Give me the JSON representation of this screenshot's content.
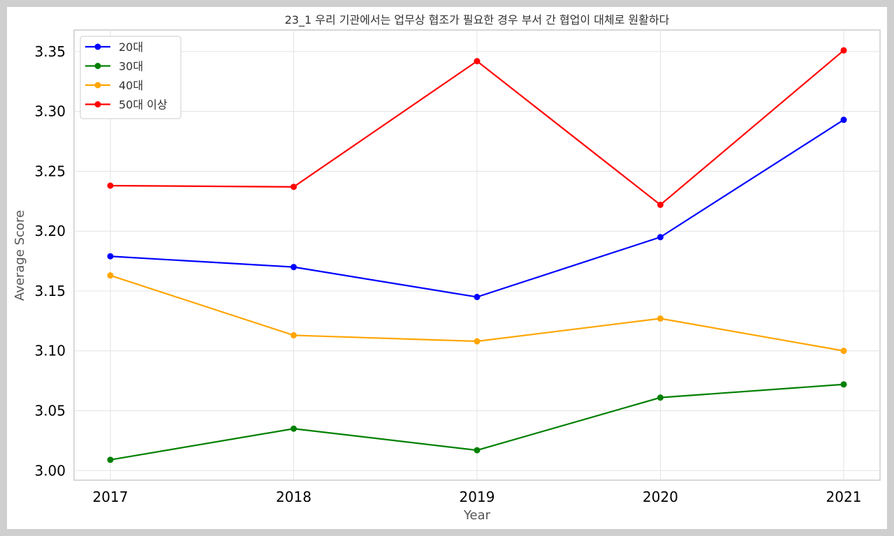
{
  "chart_data": {
    "type": "line",
    "title": "23_1 우리 기관에서는 업무상 협조가 필요한 경우 부서 간 협업이 대체로 원활하다",
    "xlabel": "Year",
    "ylabel": "Average Score",
    "x": [
      "2017",
      "2018",
      "2019",
      "2020",
      "2021"
    ],
    "ylim": [
      2.992,
      3.368
    ],
    "yticks": [
      "3.00",
      "3.05",
      "3.10",
      "3.15",
      "3.20",
      "3.25",
      "3.30",
      "3.35"
    ],
    "grid": true,
    "legend_position": "top-left",
    "series": [
      {
        "name": "20대",
        "color": "#0000ff",
        "values": [
          3.179,
          3.17,
          3.145,
          3.195,
          3.293
        ]
      },
      {
        "name": "30대",
        "color": "#008000",
        "values": [
          3.009,
          3.035,
          3.017,
          3.061,
          3.072
        ]
      },
      {
        "name": "40대",
        "color": "#ffa500",
        "values": [
          3.163,
          3.113,
          3.108,
          3.127,
          3.1
        ]
      },
      {
        "name": "50대 이상",
        "color": "#ff0000",
        "values": [
          3.238,
          3.237,
          3.342,
          3.222,
          3.351
        ]
      }
    ]
  }
}
